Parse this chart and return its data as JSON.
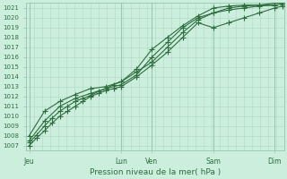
{
  "title": "Pression niveau de la mer( hPa )",
  "bg_color": "#cceedd",
  "grid_color_minor": "#b0d8c8",
  "grid_color_major": "#99c4b4",
  "line_color": "#2d6e3e",
  "ylim": [
    1006.5,
    1021.5
  ],
  "yticks": [
    1007,
    1008,
    1009,
    1010,
    1011,
    1012,
    1013,
    1014,
    1015,
    1016,
    1017,
    1018,
    1019,
    1020,
    1021
  ],
  "day_labels": [
    "Jeu",
    "Lun",
    "Ven",
    "Sam",
    "Dim"
  ],
  "day_positions": [
    0.0,
    3.0,
    4.0,
    6.0,
    8.0
  ],
  "xlim": [
    -0.1,
    8.3
  ],
  "num_minor_cols": 32,
  "series1_x": [
    0.0,
    0.25,
    0.5,
    0.75,
    1.0,
    1.25,
    1.5,
    1.75,
    2.0,
    2.25,
    2.5,
    2.75,
    3.0,
    3.5,
    4.0,
    4.5,
    5.0,
    5.5,
    6.0,
    6.5,
    7.0,
    7.5,
    8.0,
    8.25
  ],
  "series1_y": [
    1007.0,
    1007.8,
    1008.5,
    1009.3,
    1010.0,
    1010.5,
    1011.0,
    1011.5,
    1012.0,
    1012.3,
    1012.6,
    1012.8,
    1013.0,
    1014.0,
    1015.2,
    1016.5,
    1018.0,
    1019.5,
    1019.0,
    1019.5,
    1020.0,
    1020.5,
    1021.0,
    1021.2
  ],
  "series2_x": [
    0.0,
    0.25,
    0.5,
    0.75,
    1.0,
    1.25,
    1.5,
    1.75,
    2.0,
    2.25,
    2.5,
    2.75,
    3.0,
    3.5,
    4.0,
    4.5,
    5.0,
    5.5,
    6.0,
    6.5,
    7.0,
    7.5,
    8.0,
    8.25
  ],
  "series2_y": [
    1007.3,
    1008.1,
    1009.0,
    1009.8,
    1010.5,
    1011.0,
    1011.5,
    1011.8,
    1012.1,
    1012.5,
    1012.8,
    1013.2,
    1013.5,
    1014.5,
    1015.5,
    1017.0,
    1018.5,
    1019.8,
    1020.5,
    1020.8,
    1021.0,
    1021.2,
    1021.3,
    1021.4
  ],
  "series3_x": [
    0.0,
    0.5,
    1.0,
    1.5,
    2.0,
    2.5,
    3.0,
    3.5,
    4.0,
    4.5,
    5.0,
    5.5,
    6.0,
    6.5,
    7.0,
    7.5,
    8.0,
    8.25
  ],
  "series3_y": [
    1007.5,
    1009.5,
    1011.0,
    1011.8,
    1012.3,
    1012.8,
    1013.2,
    1014.2,
    1016.0,
    1017.5,
    1019.0,
    1020.0,
    1020.5,
    1021.0,
    1021.2,
    1021.3,
    1021.5,
    1021.5
  ],
  "series4_x": [
    0.0,
    0.5,
    1.0,
    1.5,
    2.0,
    2.5,
    3.0,
    3.5,
    4.0,
    4.5,
    5.0,
    5.5,
    6.0,
    6.5,
    7.0,
    7.5,
    8.0
  ],
  "series4_y": [
    1008.0,
    1010.5,
    1011.5,
    1012.2,
    1012.8,
    1013.0,
    1013.5,
    1014.8,
    1016.8,
    1018.0,
    1019.2,
    1020.2,
    1021.0,
    1021.2,
    1021.3,
    1021.3,
    1021.3
  ]
}
